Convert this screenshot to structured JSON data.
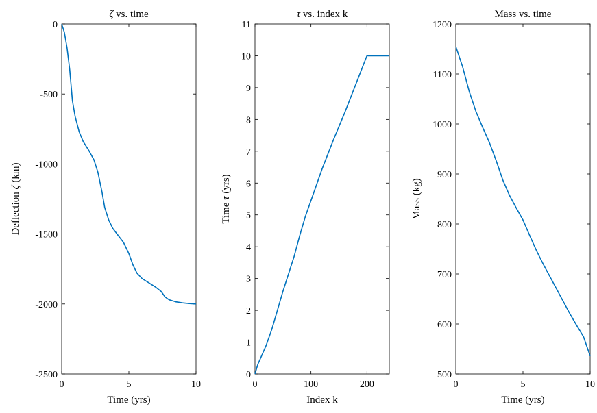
{
  "chart_data": [
    {
      "type": "line",
      "title_sym": "ζ",
      "title_rest": " vs. time",
      "xlabel": "Time (yrs)",
      "ylabel_pre": "Deflection ",
      "ylabel_sym": "ζ",
      "ylabel_post": " (km)",
      "xlim": [
        0,
        10
      ],
      "ylim": [
        -2500,
        0
      ],
      "xticks": [
        0,
        5,
        10
      ],
      "yticks": [
        -2500,
        -2000,
        -1500,
        -1000,
        -500,
        0
      ],
      "series_color": "#0072BD",
      "x": [
        0,
        0.2,
        0.4,
        0.6,
        0.8,
        1.0,
        1.3,
        1.6,
        2.0,
        2.4,
        2.7,
        3.0,
        3.2,
        3.5,
        3.8,
        4.2,
        4.6,
        5.0,
        5.3,
        5.6,
        6.0,
        6.5,
        7.0,
        7.4,
        7.7,
        8.0,
        8.5,
        9.0,
        9.5,
        10.0
      ],
      "y": [
        0,
        -60,
        -170,
        -330,
        -550,
        -660,
        -770,
        -840,
        -900,
        -970,
        -1060,
        -1200,
        -1310,
        -1400,
        -1460,
        -1510,
        -1560,
        -1640,
        -1720,
        -1780,
        -1820,
        -1850,
        -1880,
        -1910,
        -1950,
        -1970,
        -1985,
        -1992,
        -1997,
        -2000
      ]
    },
    {
      "type": "line",
      "title_sym": "τ",
      "title_rest": " vs. index k",
      "xlabel": "Index k",
      "ylabel_pre": "Time ",
      "ylabel_sym": "τ",
      "ylabel_post": " (yrs)",
      "xlim": [
        0,
        240
      ],
      "ylim": [
        0,
        11
      ],
      "xticks": [
        0,
        100,
        200
      ],
      "yticks": [
        0,
        1,
        2,
        3,
        4,
        5,
        6,
        7,
        8,
        9,
        10,
        11
      ],
      "series_color": "#0072BD",
      "x": [
        0,
        5,
        10,
        20,
        30,
        40,
        50,
        60,
        70,
        80,
        90,
        100,
        120,
        140,
        160,
        180,
        200,
        220,
        240
      ],
      "y": [
        0,
        0.3,
        0.5,
        0.9,
        1.4,
        2.0,
        2.6,
        3.15,
        3.7,
        4.35,
        4.95,
        5.45,
        6.45,
        7.35,
        8.2,
        9.1,
        10.0,
        10.0,
        10.0
      ]
    },
    {
      "type": "line",
      "title_sym": "",
      "title_rest": "Mass vs. time",
      "xlabel": "Time (yrs)",
      "ylabel_pre": "Mass (kg)",
      "ylabel_sym": "",
      "ylabel_post": "",
      "xlim": [
        0,
        10
      ],
      "ylim": [
        500,
        1200
      ],
      "xticks": [
        0,
        5,
        10
      ],
      "yticks": [
        500,
        600,
        700,
        800,
        900,
        1000,
        1100,
        1200
      ],
      "series_color": "#0072BD",
      "x": [
        0,
        0.5,
        1.0,
        1.5,
        2.0,
        2.5,
        3.0,
        3.5,
        4.0,
        4.5,
        5.0,
        5.5,
        6.0,
        6.5,
        7.0,
        7.5,
        8.0,
        8.5,
        9.0,
        9.5,
        10.0
      ],
      "y": [
        1155,
        1115,
        1065,
        1025,
        993,
        963,
        927,
        888,
        857,
        832,
        808,
        777,
        747,
        720,
        695,
        670,
        645,
        620,
        597,
        575,
        536
      ]
    }
  ]
}
